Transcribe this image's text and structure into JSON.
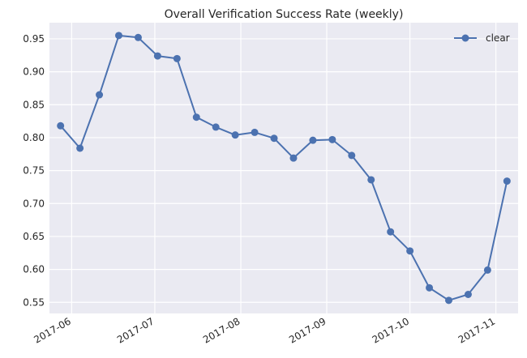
{
  "chart_data": {
    "type": "line",
    "title": "Overall Verification Success Rate (weekly)",
    "xlabel": "",
    "ylabel": "",
    "x": [
      "2017-05-28",
      "2017-06-04",
      "2017-06-11",
      "2017-06-18",
      "2017-06-25",
      "2017-07-02",
      "2017-07-09",
      "2017-07-16",
      "2017-07-23",
      "2017-07-30",
      "2017-08-06",
      "2017-08-13",
      "2017-08-20",
      "2017-08-27",
      "2017-09-03",
      "2017-09-10",
      "2017-09-17",
      "2017-09-24",
      "2017-10-01",
      "2017-10-08",
      "2017-10-15",
      "2017-10-22",
      "2017-10-29",
      "2017-11-05"
    ],
    "series": [
      {
        "name": "clear",
        "values": [
          0.818,
          0.784,
          0.865,
          0.955,
          0.952,
          0.924,
          0.92,
          0.831,
          0.816,
          0.804,
          0.808,
          0.799,
          0.769,
          0.796,
          0.797,
          0.773,
          0.736,
          0.657,
          0.628,
          0.572,
          0.553,
          0.562,
          0.599,
          0.734
        ]
      }
    ],
    "xticks": [
      "2017-06",
      "2017-07",
      "2017-08",
      "2017-09",
      "2017-10",
      "2017-11"
    ],
    "xtick_dates": [
      "2017-06-01",
      "2017-07-01",
      "2017-08-01",
      "2017-09-01",
      "2017-10-01",
      "2017-11-01"
    ],
    "yticks": [
      0.55,
      0.6,
      0.65,
      0.7,
      0.75,
      0.8,
      0.85,
      0.9,
      0.95
    ],
    "ytick_labels": [
      "0.55",
      "0.60",
      "0.65",
      "0.70",
      "0.75",
      "0.80",
      "0.85",
      "0.90",
      "0.95"
    ],
    "xlim": [
      "2017-05-24",
      "2017-11-09"
    ],
    "ylim": [
      0.5331,
      0.9745
    ],
    "grid": true,
    "legend": "top-right",
    "colors": {
      "line": "#4c72b0",
      "background": "#eaeaf2",
      "grid": "#ffffff"
    }
  }
}
